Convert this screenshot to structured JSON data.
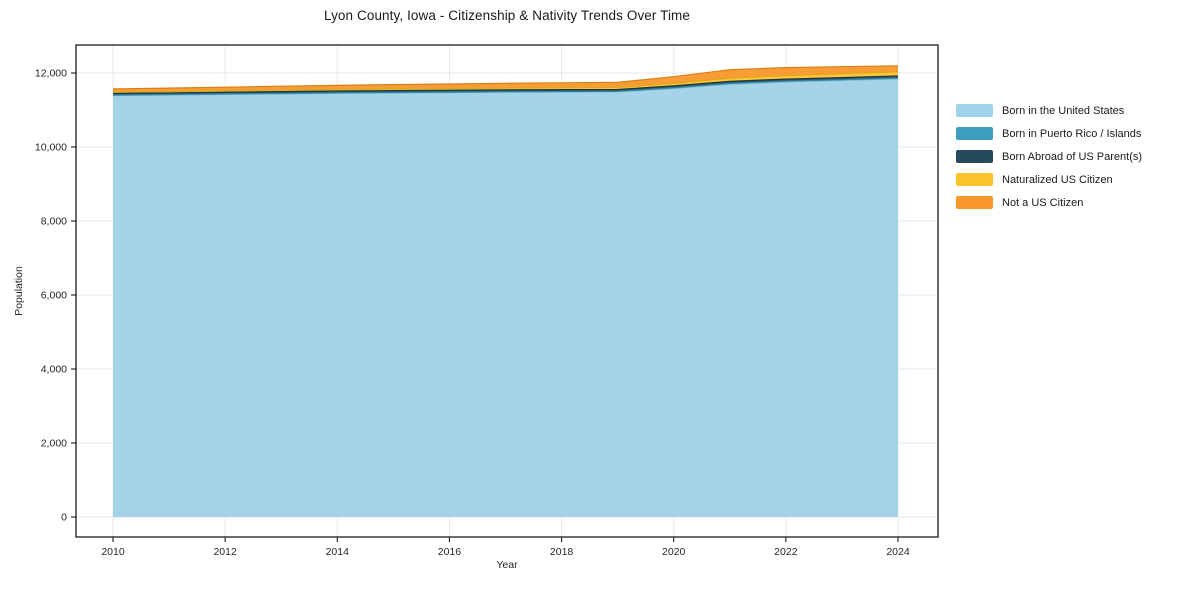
{
  "chart_data": {
    "type": "area",
    "title": "Lyon County, Iowa - Citizenship & Nativity Trends Over Time",
    "xlabel": "Year",
    "ylabel": "Population",
    "stacked": true,
    "grid": true,
    "legend_position": "right",
    "x": [
      2010,
      2011,
      2012,
      2013,
      2014,
      2015,
      2016,
      2017,
      2018,
      2019,
      2020,
      2021,
      2022,
      2023,
      2024
    ],
    "xticks": {
      "values": [
        2010,
        2012,
        2014,
        2016,
        2018,
        2020,
        2022,
        2024
      ],
      "labels": [
        "2010",
        "2012",
        "2014",
        "2016",
        "2018",
        "2020",
        "2022",
        "2024"
      ]
    },
    "yticks": {
      "values": [
        0,
        2000,
        4000,
        6000,
        8000,
        10000,
        12000
      ],
      "labels": [
        "0",
        "2,000",
        "4,000",
        "6,000",
        "8,000",
        "10,000",
        "12,000"
      ]
    },
    "xlim": [
      2009.3,
      2024.7
    ],
    "ylim": [
      -575,
      12850
    ],
    "series": [
      {
        "name": "Born in the United States",
        "color": "#A0D2E8",
        "edge": "#7EB6D2",
        "values": [
          11390,
          11405,
          11420,
          11435,
          11450,
          11460,
          11470,
          11480,
          11485,
          11490,
          11580,
          11700,
          11760,
          11800,
          11840
        ]
      },
      {
        "name": "Born in Puerto Rico / Islands",
        "color": "#3D9FBE",
        "edge": "#2F86A2",
        "values": [
          15,
          15,
          15,
          15,
          15,
          15,
          15,
          15,
          15,
          15,
          20,
          20,
          20,
          20,
          25
        ]
      },
      {
        "name": "Born Abroad of US Parent(s)",
        "color": "#264A5C",
        "edge": "#1B3845",
        "values": [
          45,
          45,
          45,
          48,
          48,
          50,
          50,
          50,
          50,
          50,
          50,
          55,
          55,
          55,
          55
        ]
      },
      {
        "name": "Naturalized US Citizen",
        "color": "#FCC32D",
        "edge": "#DFA81C",
        "values": [
          30,
          33,
          36,
          38,
          40,
          43,
          45,
          48,
          52,
          55,
          65,
          85,
          95,
          105,
          110
        ]
      },
      {
        "name": "Not a US Citizen",
        "color": "#F8982A",
        "edge": "#DB7E16",
        "values": [
          90,
          95,
          100,
          108,
          112,
          118,
          122,
          128,
          133,
          140,
          185,
          230,
          215,
          190,
          165
        ]
      }
    ]
  }
}
